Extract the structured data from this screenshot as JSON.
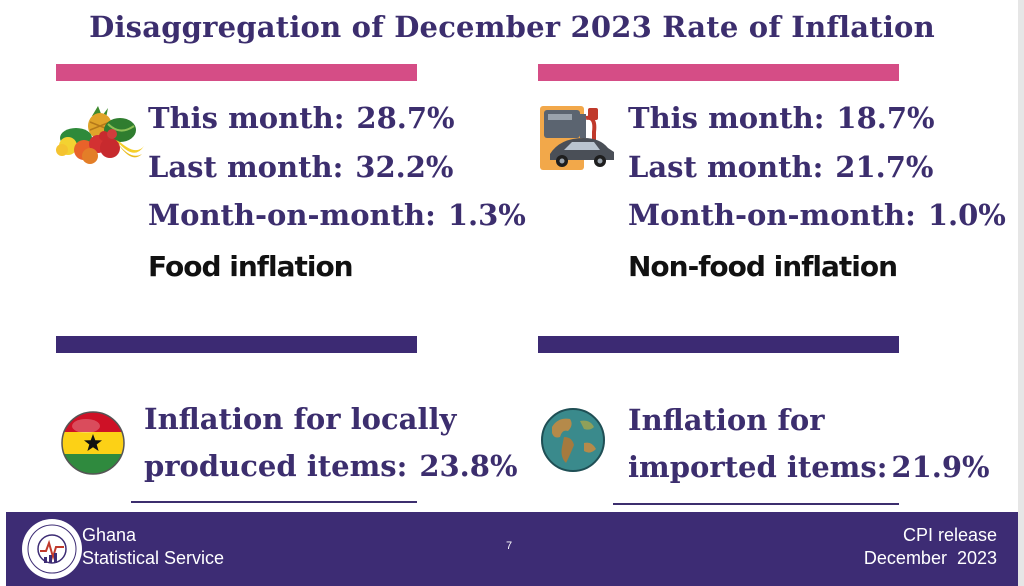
{
  "slide": {
    "title": "Disaggregation of December 2023 Rate of Inflation",
    "page_number": "7"
  },
  "food": {
    "icon": "fruit-basket-icon",
    "this_month_label": "This month:",
    "this_month_value": "28.7%",
    "last_month_label": "Last month:",
    "last_month_value": "32.2%",
    "mom_label": "Month-on-month:",
    "mom_value": "1.3%",
    "heading": "Food inflation"
  },
  "nonfood": {
    "icon": "fuel-pump-car-icon",
    "this_month_label": "This month:",
    "this_month_value": "18.7%",
    "last_month_label": "Last month:",
    "last_month_value": "21.7%",
    "mom_label": "Month-on-month:",
    "mom_value": "1.0%",
    "heading": "Non-food inflation"
  },
  "local": {
    "icon": "ghana-flag-icon",
    "line1": "Inflation for locally",
    "line2_label": "produced items:",
    "value": "23.8%"
  },
  "imported": {
    "icon": "globe-icon",
    "line1": "Inflation for",
    "line2_label": "imported items:",
    "value": "21.9%"
  },
  "footer": {
    "org_line1": "Ghana",
    "org_line2": "Statistical Service",
    "logo_text": "STATISTICAL SERVICE · GHANA",
    "release_line1": "CPI release",
    "release_line2": "December  2023"
  },
  "colors": {
    "accent_purple": "#3c2e6e",
    "accent_pink": "#d54d86",
    "footer_bg": "#3d2c74"
  }
}
